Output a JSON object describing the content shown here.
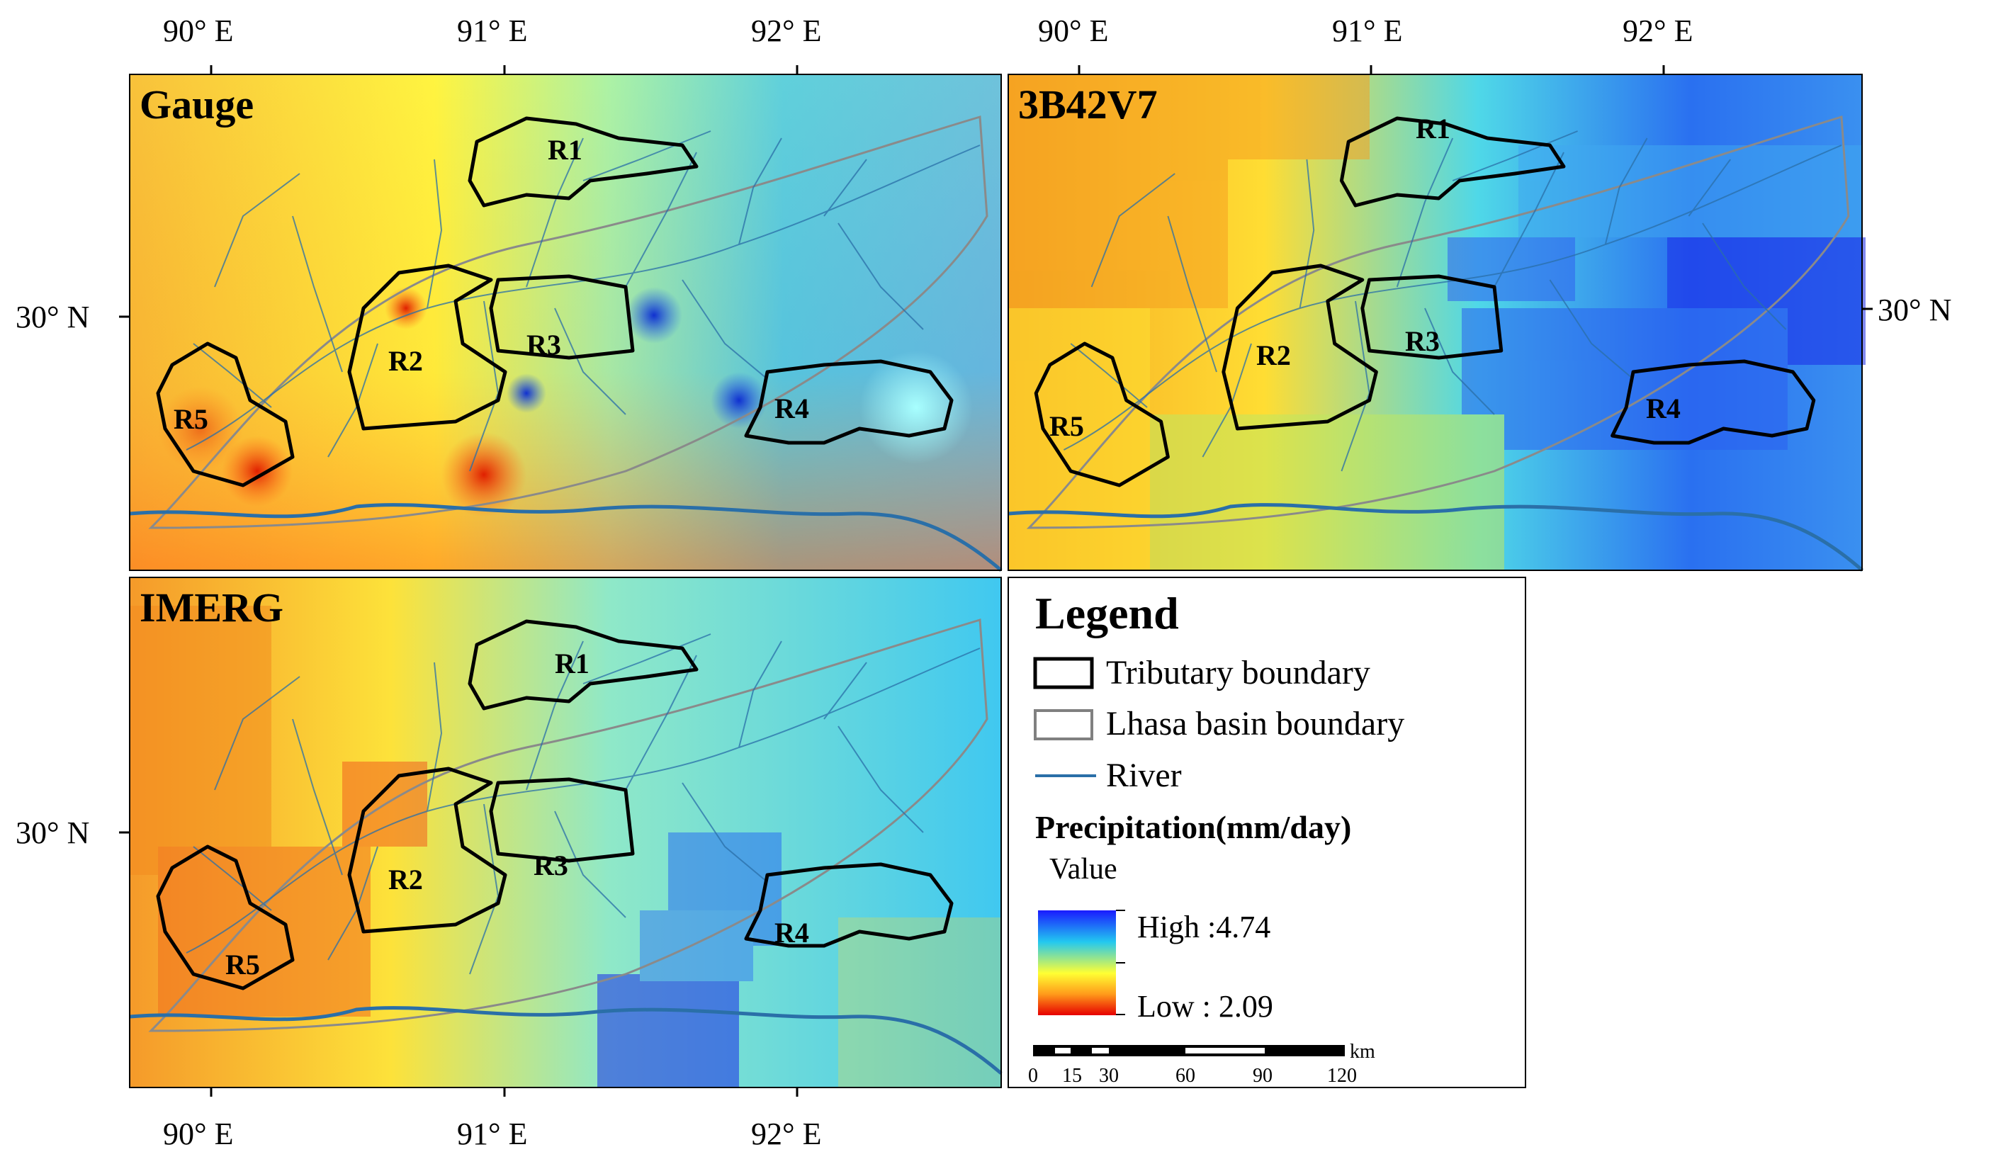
{
  "panels": {
    "gauge": {
      "title": "Gauge"
    },
    "trmm": {
      "title": "3B42V7"
    },
    "imerg": {
      "title": "IMERG"
    }
  },
  "axes": {
    "lon_labels": [
      "90° E",
      "91° E",
      "92° E"
    ],
    "lat_label": "30° N"
  },
  "regions": [
    "R1",
    "R2",
    "R3",
    "R4",
    "R5"
  ],
  "legend": {
    "title": "Legend",
    "items": {
      "tributary": "Tributary boundary",
      "basin": "Lhasa basin boundary",
      "river": "River"
    },
    "precip_title": "Precipitation(mm/day)",
    "value_label": "Value",
    "high": "High :4.74",
    "low": "Low : 2.09",
    "scale": {
      "unit": "km",
      "ticks": [
        "0",
        "15",
        "30",
        "60",
        "90",
        "120"
      ]
    }
  },
  "colors": {
    "high": "#1a1aff",
    "mid": "#ffff33",
    "low": "#e60000",
    "river": "#2a6fa8",
    "boundary": "#000000",
    "basin": "#808080"
  }
}
